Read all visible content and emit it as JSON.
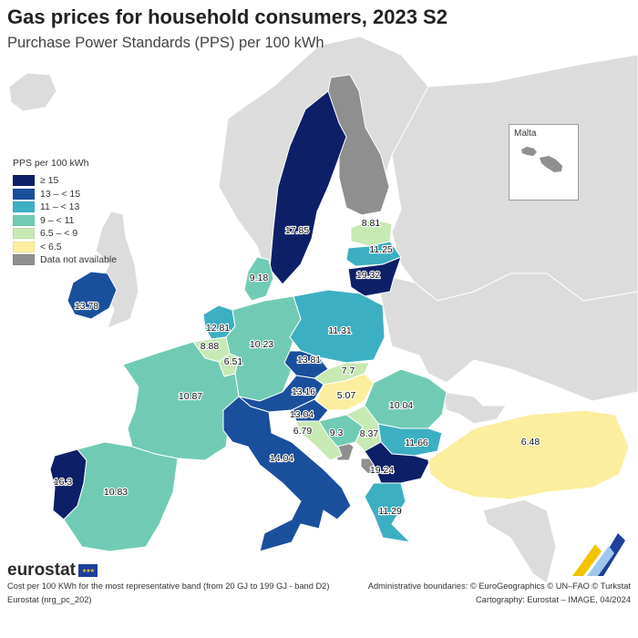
{
  "title": "Gas prices for household consumers, 2023 S2",
  "subtitle": "Purchase Power Standards (PPS) per 100 kWh",
  "legend": {
    "title": "PPS per 100 kWh",
    "classes": [
      {
        "label": "≥ 15",
        "color": "#0d1f66"
      },
      {
        "label": "13 – < 15",
        "color": "#1a4f9c"
      },
      {
        "label": "11 – < 13",
        "color": "#3dafc3"
      },
      {
        "label": "9 – < 11",
        "color": "#71cbb4"
      },
      {
        "label": "6.5 – < 9",
        "color": "#c7e9b4"
      },
      {
        "label": "< 6.5",
        "color": "#fbee9e"
      },
      {
        "label": "Data not available",
        "color": "#8f8f8f"
      }
    ]
  },
  "inset": {
    "label": "Malta"
  },
  "colors": {
    "sea": "#ffffff",
    "non_eu_land": "#dcdcdc",
    "border": "#ffffff",
    "label_text": "#111111"
  },
  "regions": [
    {
      "value": "17.85",
      "class": 0
    },
    {
      "value": "8.81",
      "class": 4
    },
    {
      "value": "11.25",
      "class": 2
    },
    {
      "value": "19.32",
      "class": 0
    },
    {
      "value": "9.18",
      "class": 3
    },
    {
      "value": "13.78",
      "class": 1
    },
    {
      "value": "12.81",
      "class": 2
    },
    {
      "value": "8.88",
      "class": 4
    },
    {
      "value": "6.51",
      "class": 4
    },
    {
      "value": "10.23",
      "class": 3
    },
    {
      "value": "11.31",
      "class": 2
    },
    {
      "value": "13.81",
      "class": 1
    },
    {
      "value": "7.7",
      "class": 4
    },
    {
      "value": "10.87",
      "class": 3
    },
    {
      "value": "13.16",
      "class": 1
    },
    {
      "value": "5.07",
      "class": 5
    },
    {
      "value": "10.04",
      "class": 3
    },
    {
      "value": "13.04",
      "class": 1
    },
    {
      "value": "6.79",
      "class": 4
    },
    {
      "value": "9.3",
      "class": 3
    },
    {
      "value": "8.37",
      "class": 4
    },
    {
      "value": "11.66",
      "class": 2
    },
    {
      "value": "14.04",
      "class": 1
    },
    {
      "value": "19.24",
      "class": 0
    },
    {
      "value": "6.48",
      "class": 5
    },
    {
      "value": "16.3",
      "class": 0
    },
    {
      "value": "10.83",
      "class": 3
    },
    {
      "value": "11.29",
      "class": 2
    }
  ],
  "no_data_regions": 4,
  "footer": {
    "note": "Cost per 100 KWh for the most representative band (from 20 GJ to 199 GJ - band D2)",
    "source": "Eurostat (nrg_pc_202)",
    "boundaries": "Administrative boundaries: © EuroGeographics © UN–FAO © Turkstat",
    "cartography": "Cartography: Eurostat – IMAGE, 04/2024",
    "brand": "eurostat"
  }
}
